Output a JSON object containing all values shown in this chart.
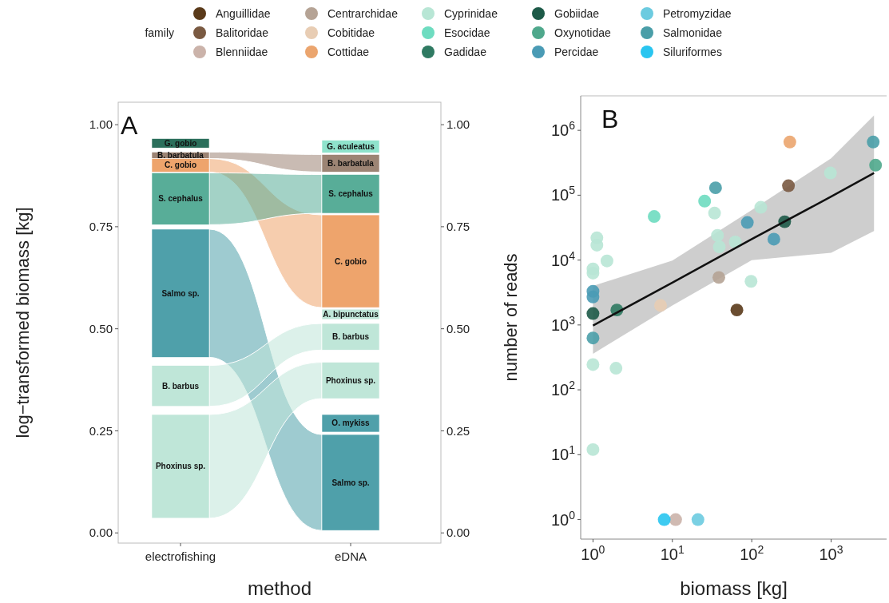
{
  "chart_data": [
    {
      "type": "bar",
      "title": "A",
      "xlabel": "method",
      "ylabel": "log−transformed biomass [kg]",
      "categories": [
        "electrofishing",
        "eDNA"
      ],
      "ylim": [
        -0.025,
        1.055
      ],
      "yticks": [
        {
          "value": 0,
          "label": "0.00"
        },
        {
          "value": 0.25,
          "label": "0.25"
        },
        {
          "value": 0.5,
          "label": "0.50"
        },
        {
          "value": 0.75,
          "label": "0.75"
        },
        {
          "value": 1,
          "label": "1.00"
        }
      ],
      "y2lim": [
        -0.025,
        1.055
      ],
      "y2ticks": [
        {
          "value": 0,
          "label": "0.00"
        },
        {
          "value": 0.25,
          "label": "0.25"
        },
        {
          "value": 0.5,
          "label": "0.50"
        },
        {
          "value": 0.75,
          "label": "0.75"
        },
        {
          "value": 1,
          "label": "1.00"
        }
      ],
      "series": [
        {
          "name": "G. gobio",
          "color": "#2b6f5b",
          "base": [
            0.943,
            null
          ],
          "values": [
            0.023,
            null
          ]
        },
        {
          "name": "B. barbatula",
          "color": "#9c8474",
          "base": [
            0.917,
            0.884
          ],
          "values": [
            0.016,
            0.043
          ]
        },
        {
          "name": "C. gobio",
          "color": "#eea46c",
          "base": [
            0.884,
            0.552
          ],
          "values": [
            0.033,
            0.227
          ]
        },
        {
          "name": "S. cephalus",
          "color": "#58ad98",
          "base": [
            0.755,
            0.783
          ],
          "values": [
            0.127,
            0.095
          ]
        },
        {
          "name": "Salmo sp.",
          "color": "#4fa0aa",
          "base": [
            0.43,
            0.006
          ],
          "values": [
            0.314,
            0.235
          ]
        },
        {
          "name": "B. barbus",
          "color": "#bfe6d8",
          "base": [
            0.31,
            0.448
          ],
          "values": [
            0.1,
            0.065
          ]
        },
        {
          "name": "Phoxinus sp.",
          "color": "#bfe6d8",
          "base": [
            0.036,
            0.329
          ],
          "values": [
            0.254,
            0.089
          ]
        },
        {
          "name": "G. aculeatus",
          "color": "#8fe3cc",
          "base": [
            null,
            0.931
          ],
          "values": [
            null,
            0.031
          ]
        },
        {
          "name": "A. bipunctatus",
          "color": "#bfe6d8",
          "base": [
            null,
            0.523
          ],
          "values": [
            null,
            0.025
          ]
        },
        {
          "name": "O. mykiss",
          "color": "#4fa0aa",
          "base": [
            null,
            0.247
          ],
          "values": [
            null,
            0.043
          ]
        }
      ]
    },
    {
      "type": "scatter",
      "title": "B",
      "xlabel": "biomass [kg]",
      "ylabel": "number of reads",
      "log": "xy",
      "legend": "top",
      "legend_title": "family",
      "marker": "circle",
      "xlim": [
        0.7,
        5000
      ],
      "xticks": [
        {
          "value": 1,
          "label": "10$^{0}$"
        },
        {
          "value": 10,
          "label": "10$^{1}$"
        },
        {
          "value": 100,
          "label": "10$^{2}$"
        },
        {
          "value": 1000,
          "label": "10$^{3}$"
        }
      ],
      "ylim": [
        0.5,
        3400000
      ],
      "yticks": [
        {
          "value": 1,
          "label": "10$^{0}$"
        },
        {
          "value": 10,
          "label": "10$^{1}$"
        },
        {
          "value": 100,
          "label": "10$^{2}$"
        },
        {
          "value": 1000,
          "label": "10$^{3}$"
        },
        {
          "value": 10000,
          "label": "10$^{4}$"
        },
        {
          "value": 100000,
          "label": "10$^{5}$"
        },
        {
          "value": 1000000,
          "label": "10$^{6}$"
        }
      ],
      "series": [
        {
          "type": "line",
          "marker": "none",
          "color": "#111111",
          "x": [
            1,
            10,
            100,
            1000,
            3470
          ],
          "values": [
            980,
            4500,
            21000,
            95000,
            220000
          ],
          "lower": [
            360,
            2000,
            10000,
            13000,
            28000
          ],
          "upper": [
            4000,
            9800,
            59000,
            370000,
            1700000
          ]
        },
        {
          "name": "Anguillidae",
          "color": "#5a3a1a",
          "x": [
            65
          ],
          "values": [
            1700
          ]
        },
        {
          "name": "Balitoridae",
          "color": "#7a5a42",
          "x": [
            290
          ],
          "values": [
            140000
          ]
        },
        {
          "name": "Blenniidae",
          "color": "#cbb3aa",
          "x": [
            11
          ],
          "values": [
            1
          ]
        },
        {
          "name": "Centrarchidae",
          "color": "#b5a395",
          "x": [
            38.5
          ],
          "values": [
            5400
          ]
        },
        {
          "name": "Cobitidae",
          "color": "#e8cdb4",
          "x": [
            7.1
          ],
          "values": [
            2000
          ]
        },
        {
          "name": "Cottidae",
          "color": "#eba56e",
          "x": [
            302
          ],
          "values": [
            660000
          ]
        },
        {
          "name": "Cyprinidae",
          "color": "#b8e6d5",
          "x": [
            34,
            130,
            37,
            39,
            62,
            980,
            98,
            1,
            1,
            1.12,
            1.12,
            1.5,
            1,
            1.95,
            1
          ],
          "values": [
            53000,
            65000,
            24000,
            16000,
            19000,
            220000,
            4700,
            6300,
            7300,
            22000,
            17000,
            9700,
            245,
            215,
            12
          ]
        },
        {
          "name": "Esocidae",
          "color": "#6edcc0",
          "x": [
            25.5,
            5.9
          ],
          "values": [
            81000,
            47000
          ]
        },
        {
          "name": "Gadidae",
          "color": "#2f7a62",
          "x": [
            2
          ],
          "values": [
            1700
          ]
        },
        {
          "name": "Gobiidae",
          "color": "#1d5a48",
          "x": [
            260,
            1
          ],
          "values": [
            39000,
            1500
          ]
        },
        {
          "name": "Oxynotidae",
          "color": "#4fa88c",
          "x": [
            3630
          ],
          "values": [
            290000
          ]
        },
        {
          "name": "Percidae",
          "color": "#4a9bb5",
          "x": [
            88,
            190,
            1,
            1
          ],
          "values": [
            38000,
            21000,
            3300,
            2700
          ]
        },
        {
          "name": "Petromyzidae",
          "color": "#6ccbe0",
          "x": [
            21
          ],
          "values": [
            1
          ]
        },
        {
          "name": "Salmonidae",
          "color": "#4a9ea8",
          "x": [
            3390,
            35,
            1
          ],
          "values": [
            660000,
            130000,
            630
          ]
        },
        {
          "name": "Siluriformes",
          "color": "#29c5f0",
          "x": [
            7.9
          ],
          "values": [
            1
          ]
        }
      ]
    }
  ]
}
